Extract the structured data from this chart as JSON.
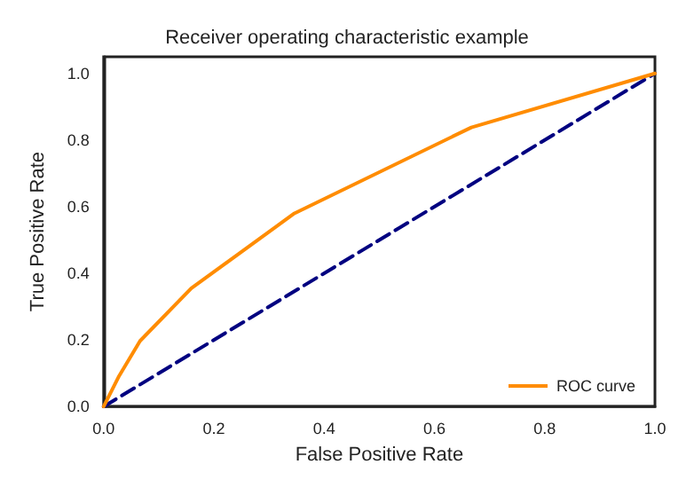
{
  "chart_data": {
    "type": "line",
    "title": "Receiver operating characteristic example",
    "xlabel": "False Positive Rate",
    "ylabel": "True Positive Rate",
    "xlim": [
      0,
      1
    ],
    "ylim": [
      0,
      1.05
    ],
    "xticks": [
      {
        "value": 0,
        "label": "0.0"
      },
      0.2,
      0.4,
      0.6,
      0.8,
      {
        "value": 1,
        "label": "1.0"
      }
    ],
    "yticks": [
      {
        "value": 0,
        "label": "0.0"
      },
      0.2,
      0.4,
      0.6,
      0.8,
      {
        "value": 1,
        "label": "1.0"
      }
    ],
    "grid": false,
    "legend": "bottom right",
    "marker": "none",
    "series": [
      {
        "name": "ROC curve",
        "color": "#ff8c00",
        "line_style": "solid",
        "x": [
          0,
          0.028,
          0.066,
          0.159,
          0.346,
          0.667,
          1
        ],
        "values": [
          0,
          0.092,
          0.197,
          0.355,
          0.58,
          0.838,
          1
        ]
      },
      {
        "color": "#000080",
        "line_style": "dashed",
        "x": [
          0,
          1
        ],
        "values": [
          0,
          1
        ]
      }
    ]
  }
}
